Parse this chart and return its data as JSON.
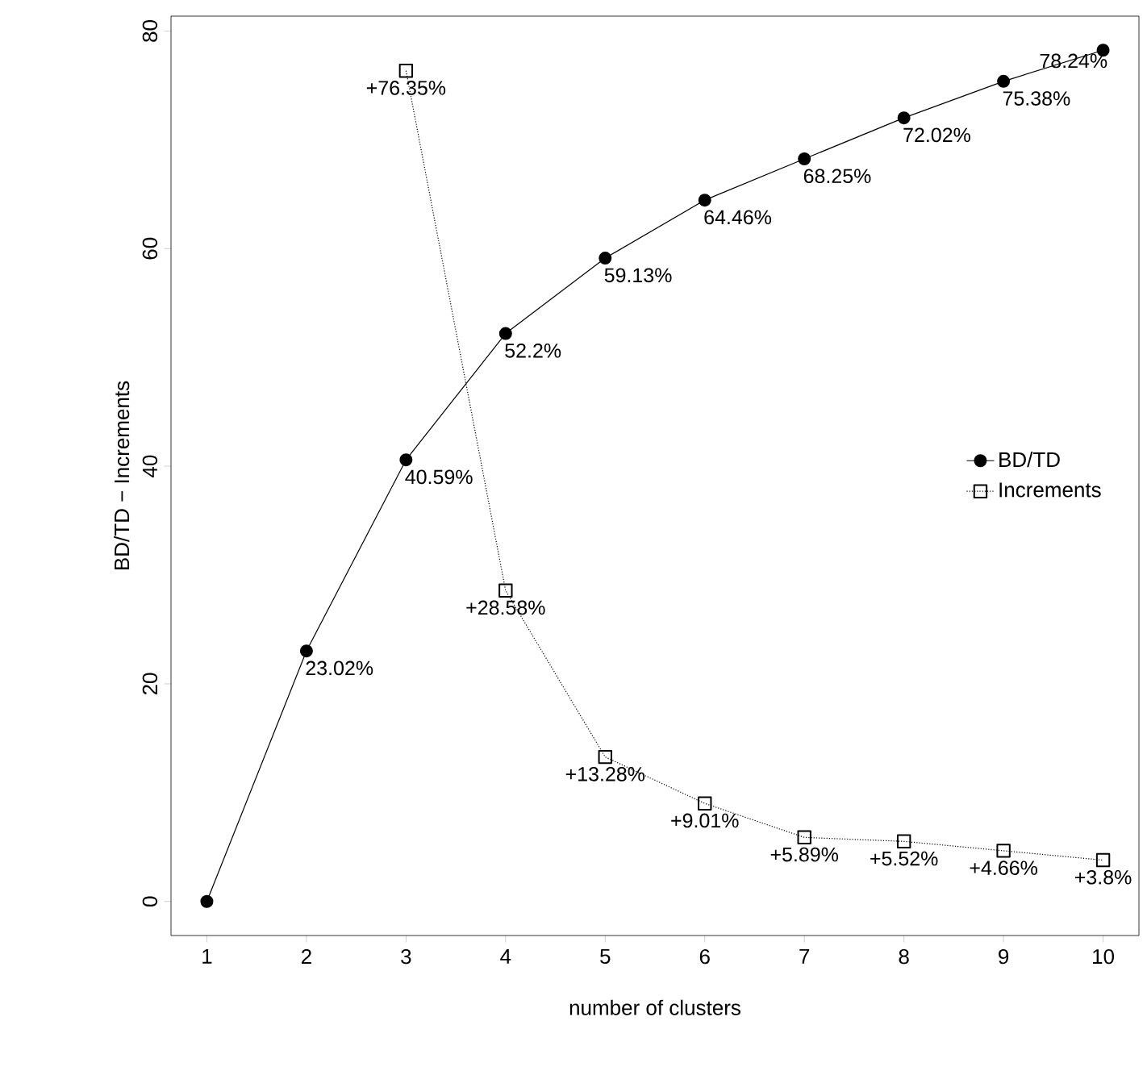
{
  "chart_data": {
    "type": "line",
    "xlabel": "number of clusters",
    "ylabel": "BD/TD − Increments",
    "xlim": [
      0.64,
      10.36
    ],
    "ylim": [
      -3.13,
      81.37
    ],
    "xticks": [
      1,
      2,
      3,
      4,
      5,
      6,
      7,
      8,
      9,
      10
    ],
    "yticks": [
      0,
      20,
      40,
      60,
      80
    ],
    "legend": "right",
    "grid": false,
    "series": [
      {
        "name": "BD/TD",
        "color": "#000000",
        "marker": "circle",
        "line_style": "solid",
        "x": [
          1,
          2,
          3,
          4,
          5,
          6,
          7,
          8,
          9,
          10
        ],
        "values": [
          0,
          23.02,
          40.59,
          52.2,
          59.13,
          64.46,
          68.25,
          72.02,
          75.38,
          78.24
        ],
        "value_labels": [
          null,
          "23.02%",
          "40.59%",
          "52.2%",
          "59.13%",
          "64.46%",
          "68.25%",
          "72.02%",
          "75.38%",
          "78.24%"
        ]
      },
      {
        "name": "Increments",
        "color": "#000000",
        "marker": "square",
        "line_style": "dotted",
        "x": [
          3,
          4,
          5,
          6,
          7,
          8,
          9,
          10
        ],
        "values": [
          76.35,
          28.58,
          13.28,
          9.01,
          5.89,
          5.52,
          4.66,
          3.8
        ],
        "value_labels": [
          "+76.35%",
          "+28.58%",
          "+13.28%",
          "+9.01%",
          "+5.89%",
          "+5.52%",
          "+4.66%",
          "+3.8%"
        ]
      }
    ]
  }
}
